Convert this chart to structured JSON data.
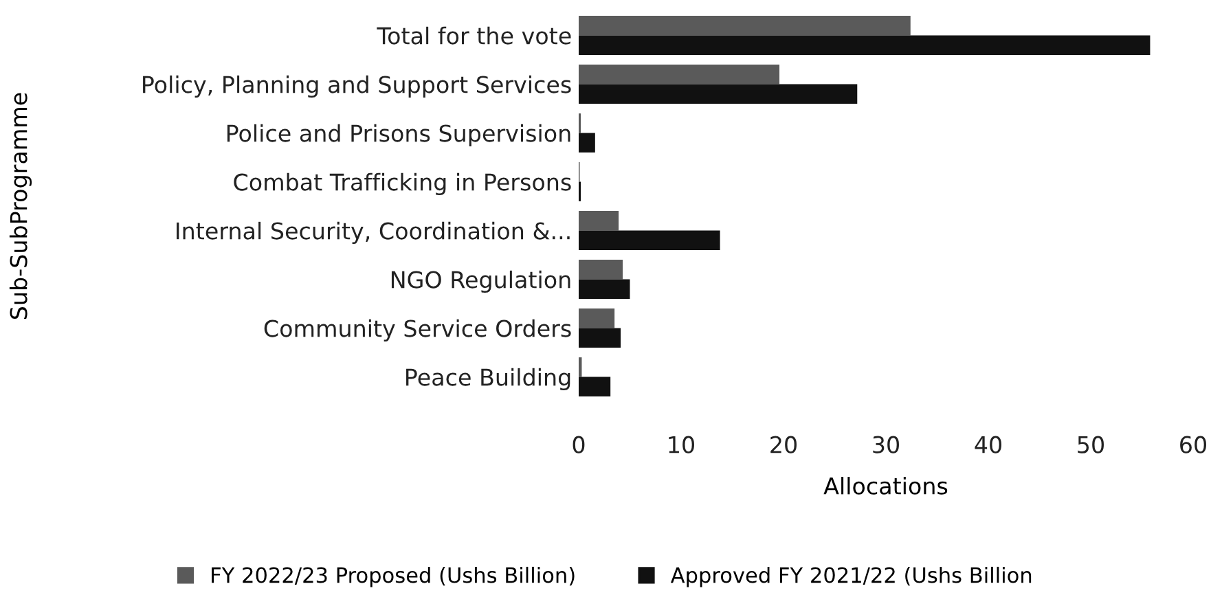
{
  "chart_data": {
    "type": "bar",
    "orientation": "horizontal",
    "xlabel": "Allocations",
    "ylabel": "Sub-SubProgramme",
    "categories": [
      "Total for the vote",
      "Policy, Planning and Support Services",
      "Police and Prisons Supervision",
      "Combat Trafficking in Persons",
      "Internal Security, Coordination &...",
      "NGO Regulation",
      "Community Service Orders",
      "Peace Building"
    ],
    "series": [
      {
        "name": "FY 2022/23 Proposed (Ushs Billion)",
        "color": "#5a5a5a",
        "values": [
          32.4,
          19.6,
          0.2,
          0.1,
          3.9,
          4.3,
          3.5,
          0.3
        ]
      },
      {
        "name": "Approved FY 2021/22 (Ushs Billion",
        "color": "#111111",
        "values": [
          55.8,
          27.2,
          1.6,
          0.2,
          13.8,
          5.0,
          4.1,
          3.1
        ]
      }
    ],
    "xlim": [
      0,
      60
    ],
    "xticks": [
      0,
      10,
      20,
      30,
      40,
      50,
      60
    ],
    "grid": false,
    "legend": "bottom"
  }
}
